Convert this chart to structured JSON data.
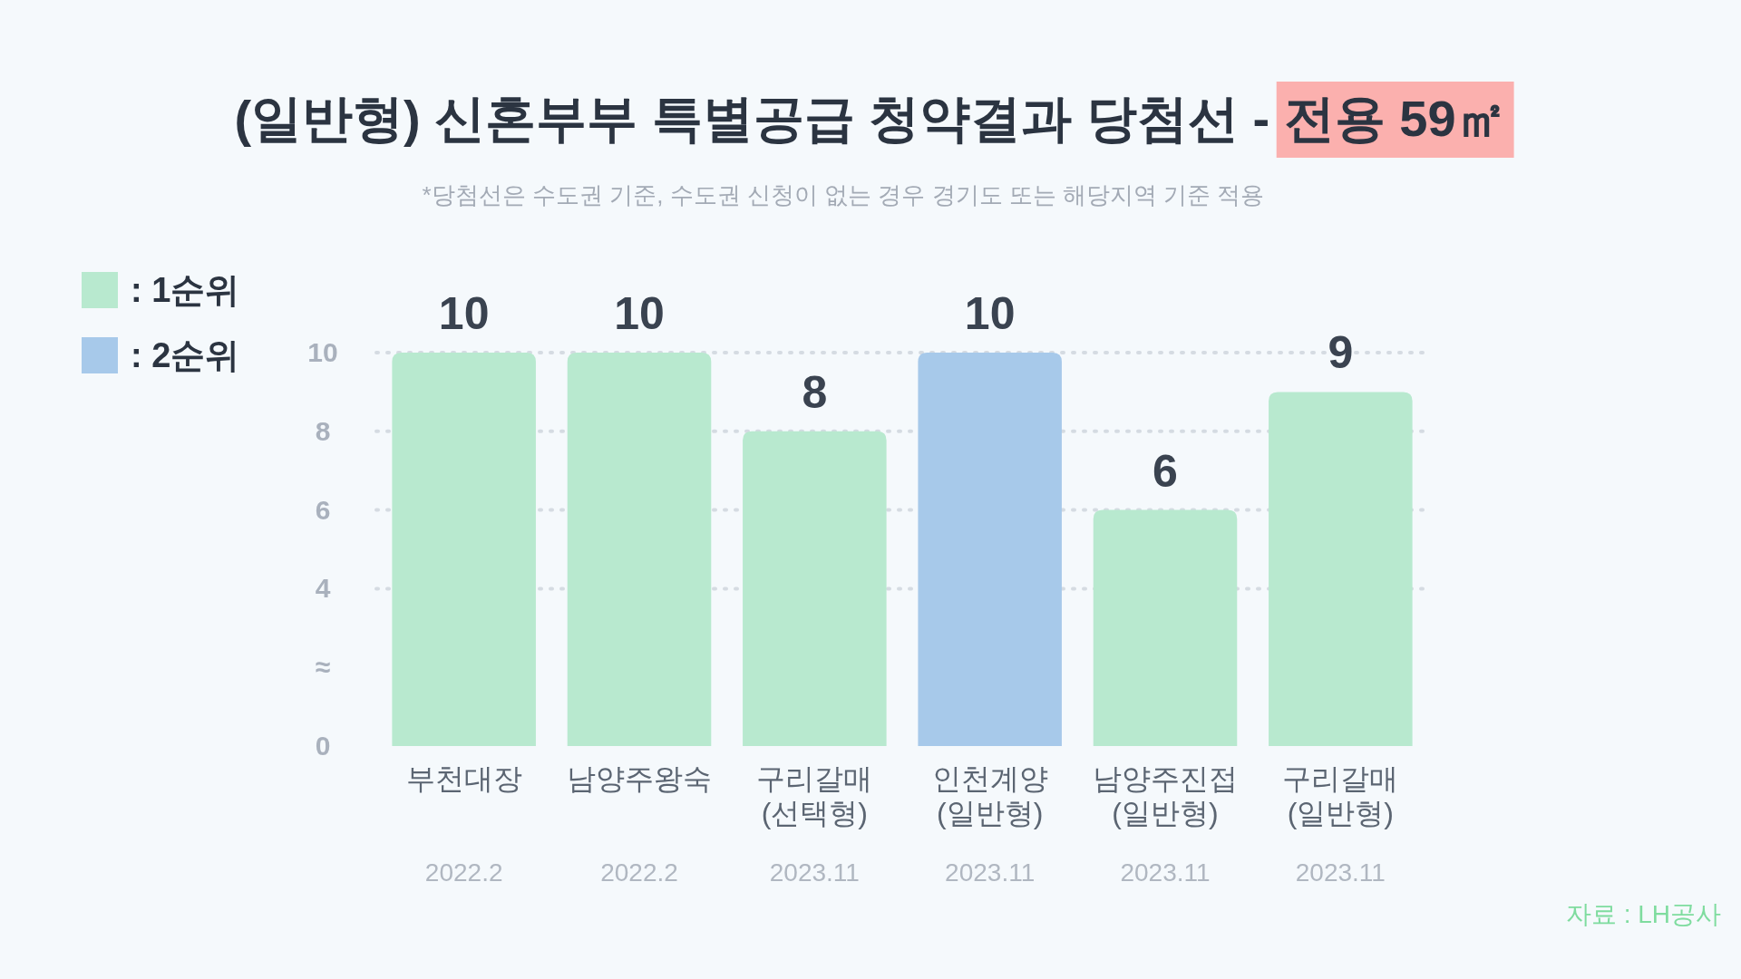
{
  "chart_data": {
    "type": "bar",
    "title": "(일반형) 신혼부부 특별공급 청약결과 당첨선 - 전용 59㎡",
    "subtitle": "*당첨선은 수도권 기준, 수도권 신청이 없는 경우 경기도 또는 해당지역 기준 적용",
    "categories": [
      "부천대장",
      "남양주왕숙",
      "구리갈매\n(선택형)",
      "인천계양\n(일반형)",
      "남양주진접\n(일반형)",
      "구리갈매\n(일반형)"
    ],
    "series": [
      {
        "name": ": 1순위",
        "color": "#b8e9cf",
        "values": [
          10,
          10,
          8,
          null,
          6,
          9
        ]
      },
      {
        "name": ": 2순위",
        "color": "#a7c9ea",
        "values": [
          null,
          null,
          null,
          10,
          null,
          null
        ]
      }
    ],
    "data_labels": true,
    "ylim": [
      0,
      10
    ],
    "yticks": [
      0,
      {
        "value": 2,
        "label": "≈"
      },
      4,
      6,
      8,
      10
    ],
    "grid": "y",
    "legend": "top left",
    "annotations": [
      "2022.2",
      "2022.2",
      "2023.11",
      "2023.11",
      "2023.11",
      "2023.11",
      "자료 : LH공사"
    ]
  }
}
